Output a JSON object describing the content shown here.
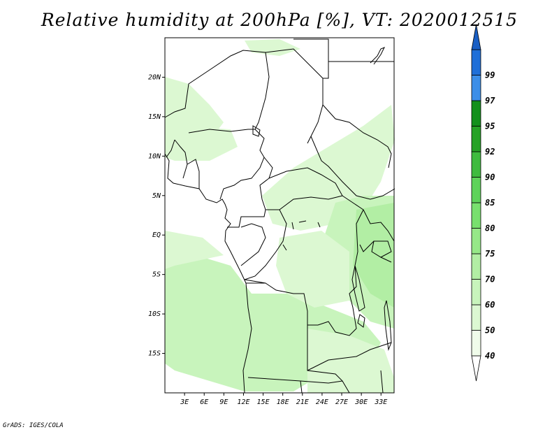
{
  "title": "Relative humidity at 200hPa [%], VT: 2020012515",
  "credit": "GrADS: IGES/COLA",
  "map": {
    "lon_range": [
      0,
      35
    ],
    "lat_range": [
      -20,
      25
    ],
    "lat_ticks": [
      {
        "lat": 20,
        "label": "20N"
      },
      {
        "lat": 15,
        "label": "15N"
      },
      {
        "lat": 10,
        "label": "10N"
      },
      {
        "lat": 5,
        "label": "5N"
      },
      {
        "lat": 0,
        "label": "EQ"
      },
      {
        "lat": -5,
        "label": "5S"
      },
      {
        "lat": -10,
        "label": "10S"
      },
      {
        "lat": -15,
        "label": "15S"
      }
    ],
    "lon_ticks": [
      {
        "lon": 3,
        "label": "3E"
      },
      {
        "lon": 6,
        "label": "6E"
      },
      {
        "lon": 9,
        "label": "9E"
      },
      {
        "lon": 12,
        "label": "12E"
      },
      {
        "lon": 15,
        "label": "15E"
      },
      {
        "lon": 18,
        "label": "18E"
      },
      {
        "lon": 21,
        "label": "21E"
      },
      {
        "lon": 24,
        "label": "24E"
      },
      {
        "lon": 27,
        "label": "27E"
      },
      {
        "lon": 30,
        "label": "30E"
      },
      {
        "lon": 33,
        "label": "33E"
      }
    ]
  },
  "colorbar": {
    "levels": [
      {
        "label": "40",
        "color": "#f0fcea"
      },
      {
        "label": "50",
        "color": "#dcf8d2"
      },
      {
        "label": "60",
        "color": "#c8f4bc"
      },
      {
        "label": "70",
        "color": "#b2eea4"
      },
      {
        "label": "75",
        "color": "#96e888"
      },
      {
        "label": "80",
        "color": "#78e06e"
      },
      {
        "label": "85",
        "color": "#5ed35a"
      },
      {
        "label": "90",
        "color": "#3fbb3f"
      },
      {
        "label": "92",
        "color": "#26a226"
      },
      {
        "label": "95",
        "color": "#13901c"
      },
      {
        "label": "97",
        "color": "#3c8ee8"
      },
      {
        "label": "99",
        "color": "#1f6fd8"
      }
    ],
    "low_end_color": "#ffffff",
    "top_cap_color": "#1a5fc4"
  },
  "fields": {
    "light": "#dcf8d2",
    "medium": "#c8f4bc",
    "darker": "#b2eea4"
  }
}
